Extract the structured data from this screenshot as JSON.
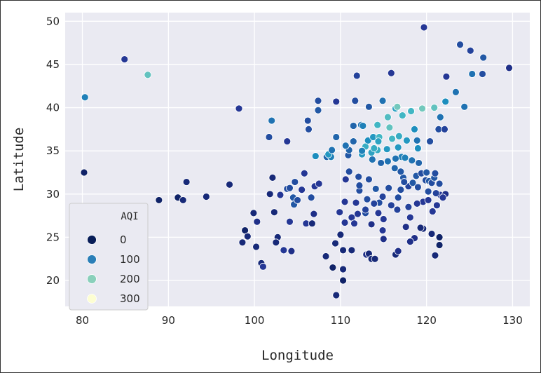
{
  "chart_data": {
    "type": "scatter",
    "xlabel": "Longitude",
    "ylabel": "Latitude",
    "xlim": [
      78,
      132
    ],
    "ylim": [
      17,
      51
    ],
    "xticks": [
      80,
      90,
      100,
      110,
      120,
      130
    ],
    "yticks": [
      20,
      25,
      30,
      35,
      40,
      45,
      50
    ],
    "grid": true,
    "legend": {
      "title": "AQI",
      "placement": "lower-left",
      "entries": [
        {
          "label": "0",
          "color": "#081d58"
        },
        {
          "label": "100",
          "color": "#2b7fb8"
        },
        {
          "label": "200",
          "color": "#8ad0bb"
        },
        {
          "label": "300",
          "color": "#fdfed2"
        }
      ]
    },
    "colorscale": [
      "#081d58",
      "#253494",
      "#225ea8",
      "#1d91c0",
      "#41b6c4",
      "#7fcdbb",
      "#c7e9b4",
      "#edf8b1",
      "#ffffd9"
    ],
    "points": [
      [
        80.3,
        41.2,
        100
      ],
      [
        80.2,
        32.5,
        10
      ],
      [
        84.9,
        45.6,
        40
      ],
      [
        87.6,
        43.8,
        170
      ],
      [
        88.9,
        29.3,
        10
      ],
      [
        91.1,
        29.6,
        10
      ],
      [
        91.7,
        29.3,
        20
      ],
      [
        92.1,
        31.4,
        20
      ],
      [
        94.4,
        29.7,
        20
      ],
      [
        97.1,
        31.1,
        20
      ],
      [
        98.2,
        39.9,
        40
      ],
      [
        98.6,
        24.4,
        20
      ],
      [
        98.9,
        25.8,
        10
      ],
      [
        99.2,
        25.1,
        20
      ],
      [
        99.9,
        27.8,
        20
      ],
      [
        100.3,
        26.8,
        30
      ],
      [
        100.8,
        22.0,
        20
      ],
      [
        100.2,
        23.9,
        20
      ],
      [
        101.0,
        21.6,
        40
      ],
      [
        101.7,
        36.6,
        60
      ],
      [
        102.0,
        38.5,
        90
      ],
      [
        101.8,
        30.0,
        20
      ],
      [
        102.1,
        31.9,
        20
      ],
      [
        102.3,
        27.9,
        20
      ],
      [
        102.7,
        25.0,
        20
      ],
      [
        102.5,
        24.4,
        20
      ],
      [
        103.0,
        29.9,
        40
      ],
      [
        103.4,
        23.5,
        40
      ],
      [
        103.8,
        36.1,
        40
      ],
      [
        103.8,
        30.6,
        60
      ],
      [
        104.1,
        30.7,
        60
      ],
      [
        104.5,
        29.6,
        70
      ],
      [
        104.6,
        28.8,
        70
      ],
      [
        104.1,
        26.8,
        40
      ],
      [
        104.3,
        23.4,
        30
      ],
      [
        104.7,
        31.4,
        60
      ],
      [
        105.0,
        29.3,
        60
      ],
      [
        105.5,
        30.5,
        40
      ],
      [
        105.8,
        32.4,
        40
      ],
      [
        106.0,
        26.6,
        40
      ],
      [
        106.2,
        38.5,
        60
      ],
      [
        106.6,
        29.6,
        60
      ],
      [
        106.7,
        26.6,
        20
      ],
      [
        106.9,
        27.7,
        30
      ],
      [
        107.1,
        34.4,
        110
      ],
      [
        107.4,
        39.7,
        70
      ],
      [
        107.4,
        40.8,
        60
      ],
      [
        107.0,
        30.9,
        40
      ],
      [
        107.5,
        31.2,
        40
      ],
      [
        106.3,
        37.5,
        60
      ],
      [
        108.3,
        22.8,
        20
      ],
      [
        108.4,
        34.3,
        80
      ],
      [
        108.9,
        34.3,
        100
      ],
      [
        108.6,
        34.6,
        120
      ],
      [
        109.0,
        35.1,
        90
      ],
      [
        109.5,
        36.6,
        80
      ],
      [
        109.5,
        40.7,
        40
      ],
      [
        109.5,
        18.3,
        20
      ],
      [
        109.4,
        24.3,
        20
      ],
      [
        109.1,
        21.5,
        10
      ],
      [
        109.9,
        27.9,
        40
      ],
      [
        110.0,
        25.3,
        20
      ],
      [
        110.3,
        20.0,
        10
      ],
      [
        110.3,
        21.3,
        20
      ],
      [
        110.3,
        23.5,
        20
      ],
      [
        110.5,
        26.7,
        40
      ],
      [
        110.5,
        29.1,
        40
      ],
      [
        110.6,
        31.7,
        40
      ],
      [
        110.9,
        34.5,
        70
      ],
      [
        111.0,
        35.1,
        80
      ],
      [
        111.0,
        32.6,
        60
      ],
      [
        111.7,
        40.8,
        60
      ],
      [
        111.5,
        37.9,
        80
      ],
      [
        111.3,
        27.3,
        40
      ],
      [
        111.3,
        23.5,
        20
      ],
      [
        111.6,
        26.6,
        40
      ],
      [
        111.9,
        43.7,
        50
      ],
      [
        112.1,
        32.0,
        60
      ],
      [
        112.4,
        38.0,
        90
      ],
      [
        112.5,
        34.6,
        120
      ],
      [
        112.6,
        37.9,
        100
      ],
      [
        112.2,
        30.4,
        60
      ],
      [
        112.9,
        35.5,
        140
      ],
      [
        112.9,
        27.8,
        60
      ],
      [
        113.0,
        23.0,
        30
      ],
      [
        113.1,
        29.4,
        60
      ],
      [
        113.2,
        36.2,
        110
      ],
      [
        113.3,
        23.1,
        20
      ],
      [
        113.3,
        40.1,
        70
      ],
      [
        113.6,
        34.8,
        130
      ],
      [
        113.8,
        36.6,
        120
      ],
      [
        113.6,
        22.5,
        20
      ],
      [
        114.0,
        22.5,
        20
      ],
      [
        114.1,
        30.6,
        70
      ],
      [
        114.3,
        38.0,
        150
      ],
      [
        114.3,
        35.1,
        140
      ],
      [
        114.5,
        36.6,
        150
      ],
      [
        114.5,
        29.0,
        60
      ],
      [
        114.9,
        25.8,
        40
      ],
      [
        114.9,
        40.8,
        90
      ],
      [
        115.0,
        27.1,
        40
      ],
      [
        115.5,
        38.9,
        160
      ],
      [
        115.7,
        37.7,
        170
      ],
      [
        115.9,
        28.7,
        50
      ],
      [
        116.0,
        36.4,
        150
      ],
      [
        116.4,
        39.9,
        130
      ],
      [
        116.4,
        23.0,
        20
      ],
      [
        116.7,
        23.4,
        30
      ],
      [
        116.8,
        36.7,
        140
      ],
      [
        116.6,
        40.1,
        180
      ],
      [
        117.0,
        30.5,
        60
      ],
      [
        117.2,
        39.1,
        150
      ],
      [
        117.1,
        34.3,
        100
      ],
      [
        117.3,
        31.9,
        70
      ],
      [
        117.9,
        30.9,
        50
      ],
      [
        118.2,
        39.6,
        150
      ],
      [
        118.6,
        24.9,
        30
      ],
      [
        118.6,
        37.5,
        110
      ],
      [
        118.8,
        32.1,
        70
      ],
      [
        119.0,
        35.3,
        110
      ],
      [
        119.4,
        32.4,
        60
      ],
      [
        119.5,
        39.9,
        180
      ],
      [
        119.6,
        29.1,
        40
      ],
      [
        119.6,
        26.0,
        20
      ],
      [
        119.9,
        31.6,
        60
      ],
      [
        120.2,
        30.3,
        60
      ],
      [
        120.3,
        31.5,
        70
      ],
      [
        120.4,
        36.1,
        60
      ],
      [
        120.7,
        28.0,
        40
      ],
      [
        120.6,
        31.3,
        60
      ],
      [
        120.9,
        40.0,
        170
      ],
      [
        121.5,
        31.2,
        60
      ],
      [
        121.6,
        38.9,
        90
      ],
      [
        121.6,
        29.9,
        40
      ],
      [
        121.4,
        37.5,
        60
      ],
      [
        121.5,
        25.0,
        10
      ],
      [
        122.1,
        37.5,
        50
      ],
      [
        122.2,
        40.7,
        110
      ],
      [
        122.2,
        30.0,
        30
      ],
      [
        123.4,
        41.8,
        90
      ],
      [
        123.9,
        47.3,
        60
      ],
      [
        124.4,
        40.1,
        90
      ],
      [
        125.3,
        43.9,
        90
      ],
      [
        126.6,
        45.8,
        70
      ],
      [
        129.6,
        44.6,
        30
      ],
      [
        125.1,
        46.6,
        50
      ],
      [
        126.5,
        43.9,
        60
      ],
      [
        122.3,
        43.6,
        40
      ],
      [
        119.7,
        49.3,
        40
      ],
      [
        115.9,
        44.0,
        40
      ],
      [
        112.5,
        35.0,
        100
      ],
      [
        113.7,
        34.0,
        90
      ],
      [
        114.7,
        33.6,
        80
      ],
      [
        115.5,
        33.8,
        90
      ],
      [
        116.4,
        34.1,
        90
      ],
      [
        117.5,
        34.2,
        100
      ],
      [
        118.3,
        33.9,
        90
      ],
      [
        119.1,
        33.6,
        80
      ],
      [
        118.4,
        31.3,
        70
      ],
      [
        115.6,
        30.7,
        60
      ],
      [
        113.3,
        31.7,
        60
      ],
      [
        112.2,
        31.0,
        60
      ],
      [
        111.8,
        29.0,
        40
      ],
      [
        112.0,
        27.7,
        40
      ],
      [
        113.6,
        26.5,
        30
      ],
      [
        114.4,
        27.8,
        40
      ],
      [
        115.0,
        24.8,
        30
      ],
      [
        117.6,
        26.2,
        30
      ],
      [
        118.1,
        27.3,
        40
      ],
      [
        119.3,
        26.1,
        20
      ],
      [
        120.2,
        29.3,
        40
      ],
      [
        121.1,
        30.1,
        50
      ],
      [
        121.2,
        28.7,
        40
      ],
      [
        120.0,
        32.5,
        70
      ],
      [
        120.9,
        31.9,
        70
      ],
      [
        121.0,
        32.4,
        60
      ],
      [
        117.0,
        32.6,
        70
      ],
      [
        116.3,
        33.0,
        80
      ],
      [
        118.9,
        36.2,
        90
      ],
      [
        117.7,
        36.2,
        120
      ],
      [
        116.7,
        35.4,
        120
      ],
      [
        115.4,
        35.2,
        120
      ],
      [
        114.4,
        36.1,
        130
      ],
      [
        113.9,
        35.3,
        140
      ],
      [
        110.6,
        35.6,
        90
      ],
      [
        111.5,
        36.1,
        80
      ],
      [
        112.9,
        28.2,
        50
      ],
      [
        113.9,
        28.9,
        50
      ],
      [
        114.9,
        29.7,
        50
      ],
      [
        116.6,
        28.2,
        50
      ],
      [
        117.9,
        28.5,
        50
      ],
      [
        118.9,
        28.9,
        40
      ],
      [
        120.6,
        25.4,
        20
      ],
      [
        121.5,
        24.1,
        10
      ],
      [
        118.1,
        24.5,
        30
      ],
      [
        116.7,
        29.6,
        60
      ],
      [
        117.4,
        31.4,
        60
      ],
      [
        119.0,
        30.8,
        60
      ],
      [
        121.9,
        29.6,
        40
      ],
      [
        121.0,
        22.9,
        20
      ]
    ]
  }
}
